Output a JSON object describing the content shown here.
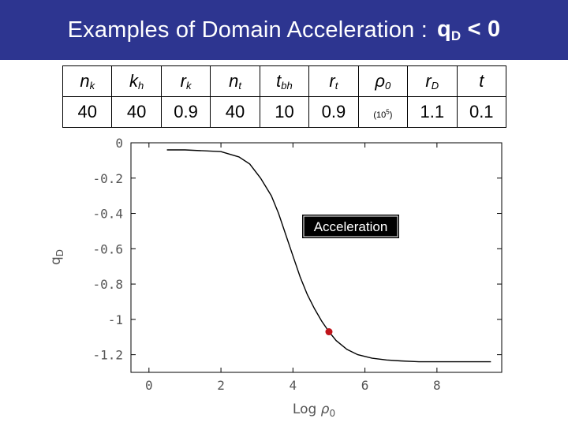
{
  "title": {
    "text": "Examples of Domain Acceleration :",
    "symbol": "q",
    "symbol_sub": "D",
    "relation": " < 0"
  },
  "table": {
    "headers": [
      {
        "main": "n",
        "sub": "k"
      },
      {
        "main": "k",
        "sub": "h"
      },
      {
        "main": "r",
        "sub": "k"
      },
      {
        "main": "n",
        "sub": "t"
      },
      {
        "main": "t",
        "sub": "bh"
      },
      {
        "main": "r",
        "sub": "t"
      },
      {
        "main": "ρ",
        "sub": "0"
      },
      {
        "main": "r",
        "sub": "D"
      },
      {
        "main": "t",
        "sub": ""
      }
    ],
    "values": [
      "40",
      "40",
      "0.9",
      "40",
      "10",
      "0.9",
      "",
      "1.1",
      "0.1"
    ],
    "rho_unit": {
      "base": "(10",
      "exp": "5",
      "close": ")"
    }
  },
  "chart_data": {
    "type": "line",
    "xlabel": "Log ρ₀",
    "ylabel": "qD",
    "xlim": [
      -0.5,
      9.8
    ],
    "ylim": [
      -1.3,
      0.0
    ],
    "xticks": [
      "0",
      "2",
      "4",
      "6",
      "8"
    ],
    "xtick_values": [
      0,
      2,
      4,
      6,
      8
    ],
    "yticks": [
      "0",
      "-0.2",
      "-0.4",
      "-0.6",
      "-0.8",
      "-1",
      "-1.2"
    ],
    "ytick_values": [
      0,
      -0.2,
      -0.4,
      -0.6,
      -0.8,
      -1.0,
      -1.2
    ],
    "series": [
      {
        "x": [
          0.5,
          1.0,
          1.5,
          2.0,
          2.5,
          2.8,
          3.1,
          3.4,
          3.6,
          3.8,
          4.0,
          4.2,
          4.4,
          4.6,
          4.8,
          5.0,
          5.2,
          5.5,
          5.8,
          6.2,
          6.6,
          7.0,
          7.5,
          8.0,
          8.5,
          9.0,
          9.5
        ],
        "y": [
          -0.04,
          -0.04,
          -0.045,
          -0.05,
          -0.08,
          -0.12,
          -0.2,
          -0.3,
          -0.4,
          -0.52,
          -0.64,
          -0.76,
          -0.86,
          -0.94,
          -1.01,
          -1.07,
          -1.12,
          -1.17,
          -1.2,
          -1.22,
          -1.23,
          -1.235,
          -1.24,
          -1.24,
          -1.24,
          -1.24,
          -1.24
        ]
      }
    ],
    "marker": {
      "x": 5.0,
      "y": -1.07,
      "color": "#c0141b"
    },
    "annotation": {
      "text": "Acceleration"
    },
    "grid": false
  }
}
